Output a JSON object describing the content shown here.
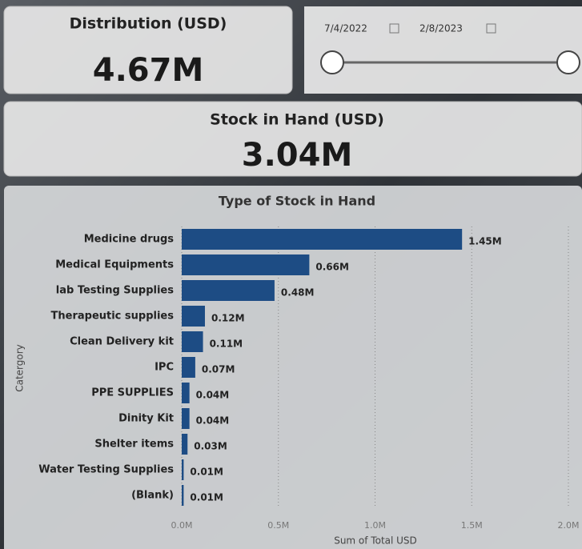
{
  "cards": [
    {
      "title": "Distribution (USD)",
      "value": "4.67M"
    },
    {
      "title": "Stock in Hand (USD)",
      "value": "3.04M"
    }
  ],
  "slicer": {
    "start": "7/4/2022",
    "end": "2/8/2023"
  },
  "chart_data": {
    "type": "hbar",
    "title": "Type of Stock in Hand",
    "x_label": "Sum of Total USD",
    "y_label": "Catergory",
    "categories": [
      "Medicine drugs",
      "Medical Equipments",
      "lab Testing Supplies",
      "Therapeutic supplies",
      "Clean Delivery kit",
      "IPC",
      "PPE SUPPLIES",
      "Dinity Kit",
      "Shelter items",
      "Water Testing Supplies",
      "(Blank)"
    ],
    "values": [
      1450000,
      660000,
      480000,
      120000,
      110000,
      70000,
      40000,
      40000,
      30000,
      10000,
      10000
    ],
    "value_labels": [
      "1.45M",
      "0.66M",
      "0.48M",
      "0.12M",
      "0.11M",
      "0.07M",
      "0.04M",
      "0.04M",
      "0.03M",
      "0.01M",
      "0.01M"
    ],
    "color": "#1d4c84",
    "xlim": [
      0,
      2000000
    ],
    "xticks": [
      {
        "value": 0,
        "label": "0.0M"
      },
      {
        "value": 500000,
        "label": "0.5M"
      },
      {
        "value": 1000000,
        "label": "1.0M"
      },
      {
        "value": 1500000,
        "label": "1.5M"
      },
      {
        "value": 2000000,
        "label": "2.0M"
      }
    ],
    "grid": true
  }
}
